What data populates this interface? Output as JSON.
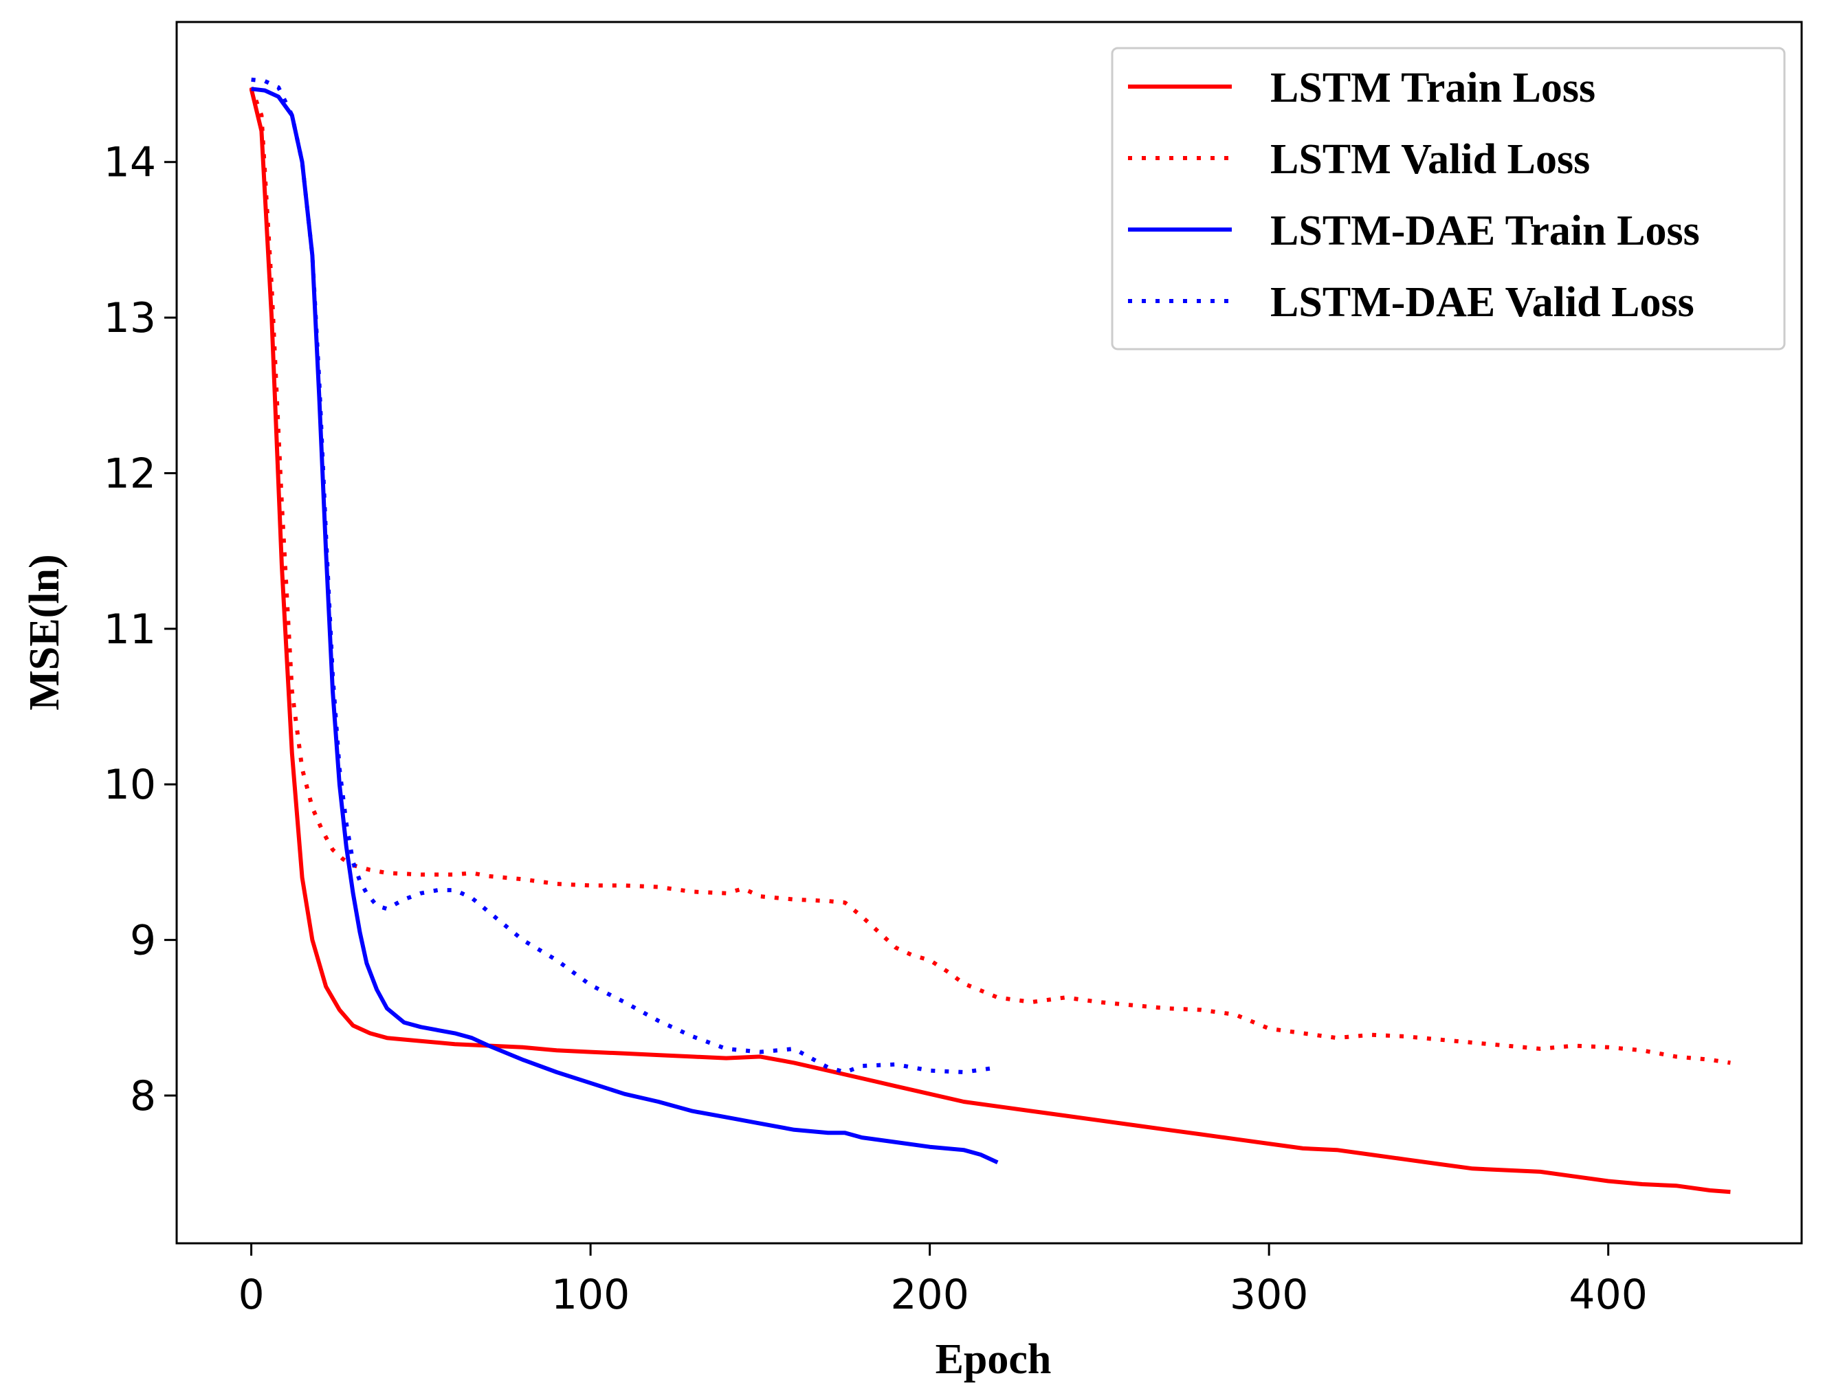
{
  "chart_data": {
    "type": "line",
    "title": "",
    "xlabel": "Epoch",
    "ylabel": "MSE(ln)",
    "xlim": [
      -22,
      457
    ],
    "ylim": [
      7.05,
      14.9
    ],
    "xticks": [
      0,
      100,
      200,
      300,
      400
    ],
    "yticks": [
      8,
      9,
      10,
      11,
      12,
      13,
      14
    ],
    "grid": false,
    "legend_position": "top-right",
    "series": [
      {
        "name": "LSTM Train Loss",
        "color": "#ff0000",
        "style": "solid",
        "x": [
          0,
          3,
          6,
          9,
          12,
          15,
          18,
          22,
          26,
          30,
          35,
          40,
          50,
          60,
          70,
          80,
          90,
          100,
          110,
          120,
          130,
          140,
          150,
          160,
          170,
          180,
          190,
          200,
          210,
          220,
          230,
          240,
          250,
          260,
          270,
          280,
          290,
          300,
          310,
          320,
          330,
          340,
          350,
          360,
          370,
          380,
          390,
          400,
          410,
          420,
          430,
          436
        ],
        "y": [
          14.47,
          14.2,
          13.0,
          11.4,
          10.2,
          9.4,
          9.0,
          8.7,
          8.55,
          8.45,
          8.4,
          8.37,
          8.35,
          8.33,
          8.32,
          8.31,
          8.29,
          8.28,
          8.27,
          8.26,
          8.25,
          8.24,
          8.25,
          8.21,
          8.16,
          8.11,
          8.06,
          8.01,
          7.96,
          7.93,
          7.9,
          7.87,
          7.84,
          7.81,
          7.78,
          7.75,
          7.72,
          7.69,
          7.66,
          7.65,
          7.62,
          7.59,
          7.56,
          7.53,
          7.52,
          7.51,
          7.48,
          7.45,
          7.43,
          7.42,
          7.39,
          7.38
        ]
      },
      {
        "name": "LSTM Valid Loss",
        "color": "#ff0000",
        "style": "dotted",
        "x": [
          0,
          3,
          6,
          9,
          12,
          15,
          18,
          21,
          24,
          27,
          30,
          35,
          40,
          50,
          60,
          65,
          70,
          80,
          90,
          100,
          110,
          120,
          130,
          140,
          145,
          150,
          160,
          170,
          175,
          180,
          185,
          190,
          195,
          200,
          205,
          210,
          220,
          230,
          240,
          250,
          260,
          270,
          280,
          290,
          300,
          310,
          320,
          330,
          340,
          350,
          360,
          370,
          380,
          390,
          400,
          410,
          420,
          430,
          436
        ],
        "y": [
          14.48,
          14.3,
          13.2,
          11.8,
          10.6,
          10.1,
          9.85,
          9.7,
          9.58,
          9.52,
          9.48,
          9.45,
          9.43,
          9.42,
          9.42,
          9.43,
          9.41,
          9.39,
          9.36,
          9.35,
          9.35,
          9.34,
          9.31,
          9.3,
          9.33,
          9.28,
          9.26,
          9.25,
          9.24,
          9.15,
          9.05,
          8.95,
          8.9,
          8.87,
          8.8,
          8.72,
          8.63,
          8.6,
          8.63,
          8.6,
          8.58,
          8.56,
          8.55,
          8.52,
          8.43,
          8.4,
          8.37,
          8.39,
          8.38,
          8.36,
          8.34,
          8.32,
          8.3,
          8.32,
          8.31,
          8.29,
          8.25,
          8.23,
          8.21
        ]
      },
      {
        "name": "LSTM-DAE Train Loss",
        "color": "#0000ff",
        "style": "solid",
        "x": [
          0,
          4,
          8,
          12,
          15,
          18,
          20,
          22,
          24,
          26,
          28,
          30,
          32,
          34,
          37,
          40,
          45,
          50,
          55,
          60,
          65,
          70,
          80,
          90,
          100,
          110,
          120,
          130,
          140,
          150,
          160,
          170,
          175,
          180,
          190,
          200,
          210,
          215,
          220
        ],
        "y": [
          14.47,
          14.46,
          14.42,
          14.3,
          14.0,
          13.4,
          12.5,
          11.5,
          10.6,
          10.0,
          9.6,
          9.3,
          9.05,
          8.85,
          8.68,
          8.56,
          8.47,
          8.44,
          8.42,
          8.4,
          8.37,
          8.32,
          8.23,
          8.15,
          8.08,
          8.01,
          7.96,
          7.9,
          7.86,
          7.82,
          7.78,
          7.76,
          7.76,
          7.73,
          7.7,
          7.67,
          7.65,
          7.62,
          7.57
        ]
      },
      {
        "name": "LSTM-DAE Valid Loss",
        "color": "#0000ff",
        "style": "dotted",
        "x": [
          0,
          4,
          8,
          12,
          15,
          18,
          20,
          22,
          24,
          26,
          28,
          30,
          32,
          34,
          37,
          40,
          45,
          50,
          55,
          60,
          65,
          70,
          80,
          90,
          100,
          110,
          120,
          130,
          140,
          150,
          160,
          170,
          175,
          180,
          190,
          200,
          210,
          220
        ],
        "y": [
          14.53,
          14.52,
          14.48,
          14.3,
          14.0,
          13.4,
          12.6,
          11.6,
          10.7,
          10.1,
          9.75,
          9.5,
          9.38,
          9.3,
          9.22,
          9.2,
          9.26,
          9.3,
          9.32,
          9.32,
          9.27,
          9.18,
          9.0,
          8.87,
          8.71,
          8.6,
          8.48,
          8.38,
          8.3,
          8.28,
          8.3,
          8.18,
          8.15,
          8.19,
          8.2,
          8.16,
          8.15,
          8.18
        ]
      }
    ]
  }
}
